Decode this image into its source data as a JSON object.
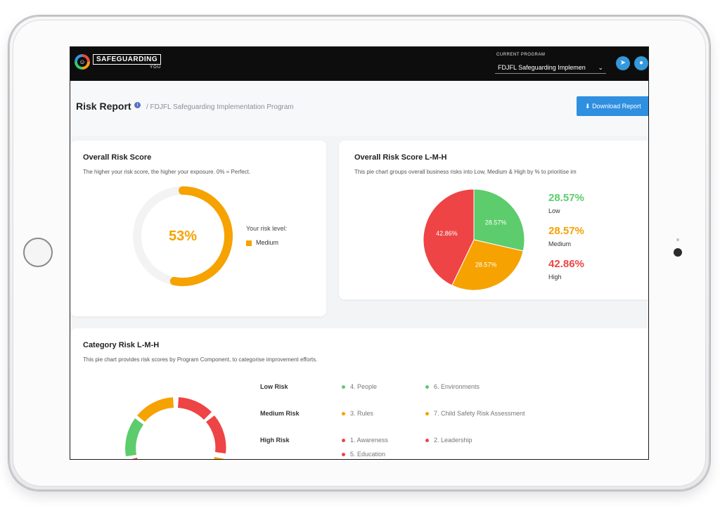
{
  "colors": {
    "low": "#5ccc6c",
    "medium": "#f6a200",
    "high": "#ee4445",
    "brand_blue": "#2f8fe0"
  },
  "header": {
    "logo_text": "SAFEGUARDING",
    "logo_sub": "YOU",
    "current_program_label": "CURRENT PROGRAM",
    "current_program_value": "FDJFL Safeguarding Implemen",
    "icons": [
      "telegram-icon",
      "user-icon"
    ]
  },
  "page": {
    "title": "Risk Report",
    "breadcrumb": "/ FDJFL Safeguarding Implementation Program",
    "download_label": "Download Report"
  },
  "overall_score": {
    "title": "Overall Risk Score",
    "subtitle": "The higher your risk score, the higher your exposure. 0% = Perfect.",
    "value_text": "53%",
    "value": 53,
    "legend_title": "Your risk level:",
    "level": "Medium"
  },
  "lmh": {
    "title": "Overall Risk Score L-M-H",
    "subtitle": "This pie chart groups overall business risks into Low, Medium & High by % to prioritise im",
    "items": [
      {
        "pct": "28.57%",
        "name": "Low"
      },
      {
        "pct": "28.57%",
        "name": "Medium"
      },
      {
        "pct": "42.86%",
        "name": "High"
      }
    ]
  },
  "chart_data": {
    "type": "pie",
    "categories": [
      "Low",
      "Medium",
      "High"
    ],
    "values": [
      28.57,
      28.57,
      42.86
    ],
    "labels": [
      "28.57%",
      "28.57%",
      "42.86%"
    ]
  },
  "category": {
    "title": "Category Risk L-M-H",
    "subtitle": "This pie chart provides risk scores by Program Component, to categorise improvement efforts.",
    "rows": [
      {
        "label": "Low Risk",
        "items": [
          "4. People",
          "6. Environments"
        ]
      },
      {
        "label": "Medium Risk",
        "items": [
          "3. Rules",
          "7. Child Safety Risk Assessment"
        ]
      },
      {
        "label": "High Risk",
        "items": [
          "1. Awareness",
          "2. Leadership",
          "5. Education"
        ]
      }
    ]
  }
}
